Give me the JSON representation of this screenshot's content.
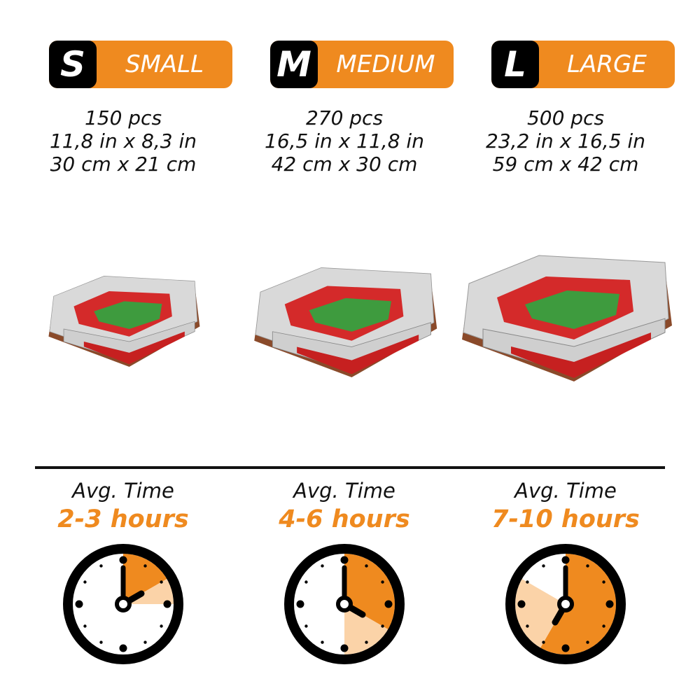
{
  "accent_color": "#ef8a1f",
  "light_accent_color": "#fbd3a8",
  "sizes": [
    {
      "letter": "S",
      "name": "SMALL",
      "pieces": "150 pcs",
      "inches": "11,8 in x 8,3 in",
      "cm": "30 cm x 21 cm",
      "time_label": "Avg. Time",
      "time": "2-3 hours",
      "min_hours": 2,
      "max_hours": 3,
      "image": "stadium-model-small"
    },
    {
      "letter": "M",
      "name": "MEDIUM",
      "pieces": "270 pcs",
      "inches": "16,5 in x 11,8 in",
      "cm": "42 cm x 30 cm",
      "time_label": "Avg. Time",
      "time": "4-6 hours",
      "min_hours": 4,
      "max_hours": 6,
      "image": "stadium-model-medium"
    },
    {
      "letter": "L",
      "name": "LARGE",
      "pieces": "500 pcs",
      "inches": "23,2 in x 16,5 in",
      "cm": "59 cm x 42 cm",
      "time_label": "Avg. Time",
      "time": "7-10 hours",
      "min_hours": 7,
      "max_hours": 10,
      "image": "stadium-model-large"
    }
  ]
}
